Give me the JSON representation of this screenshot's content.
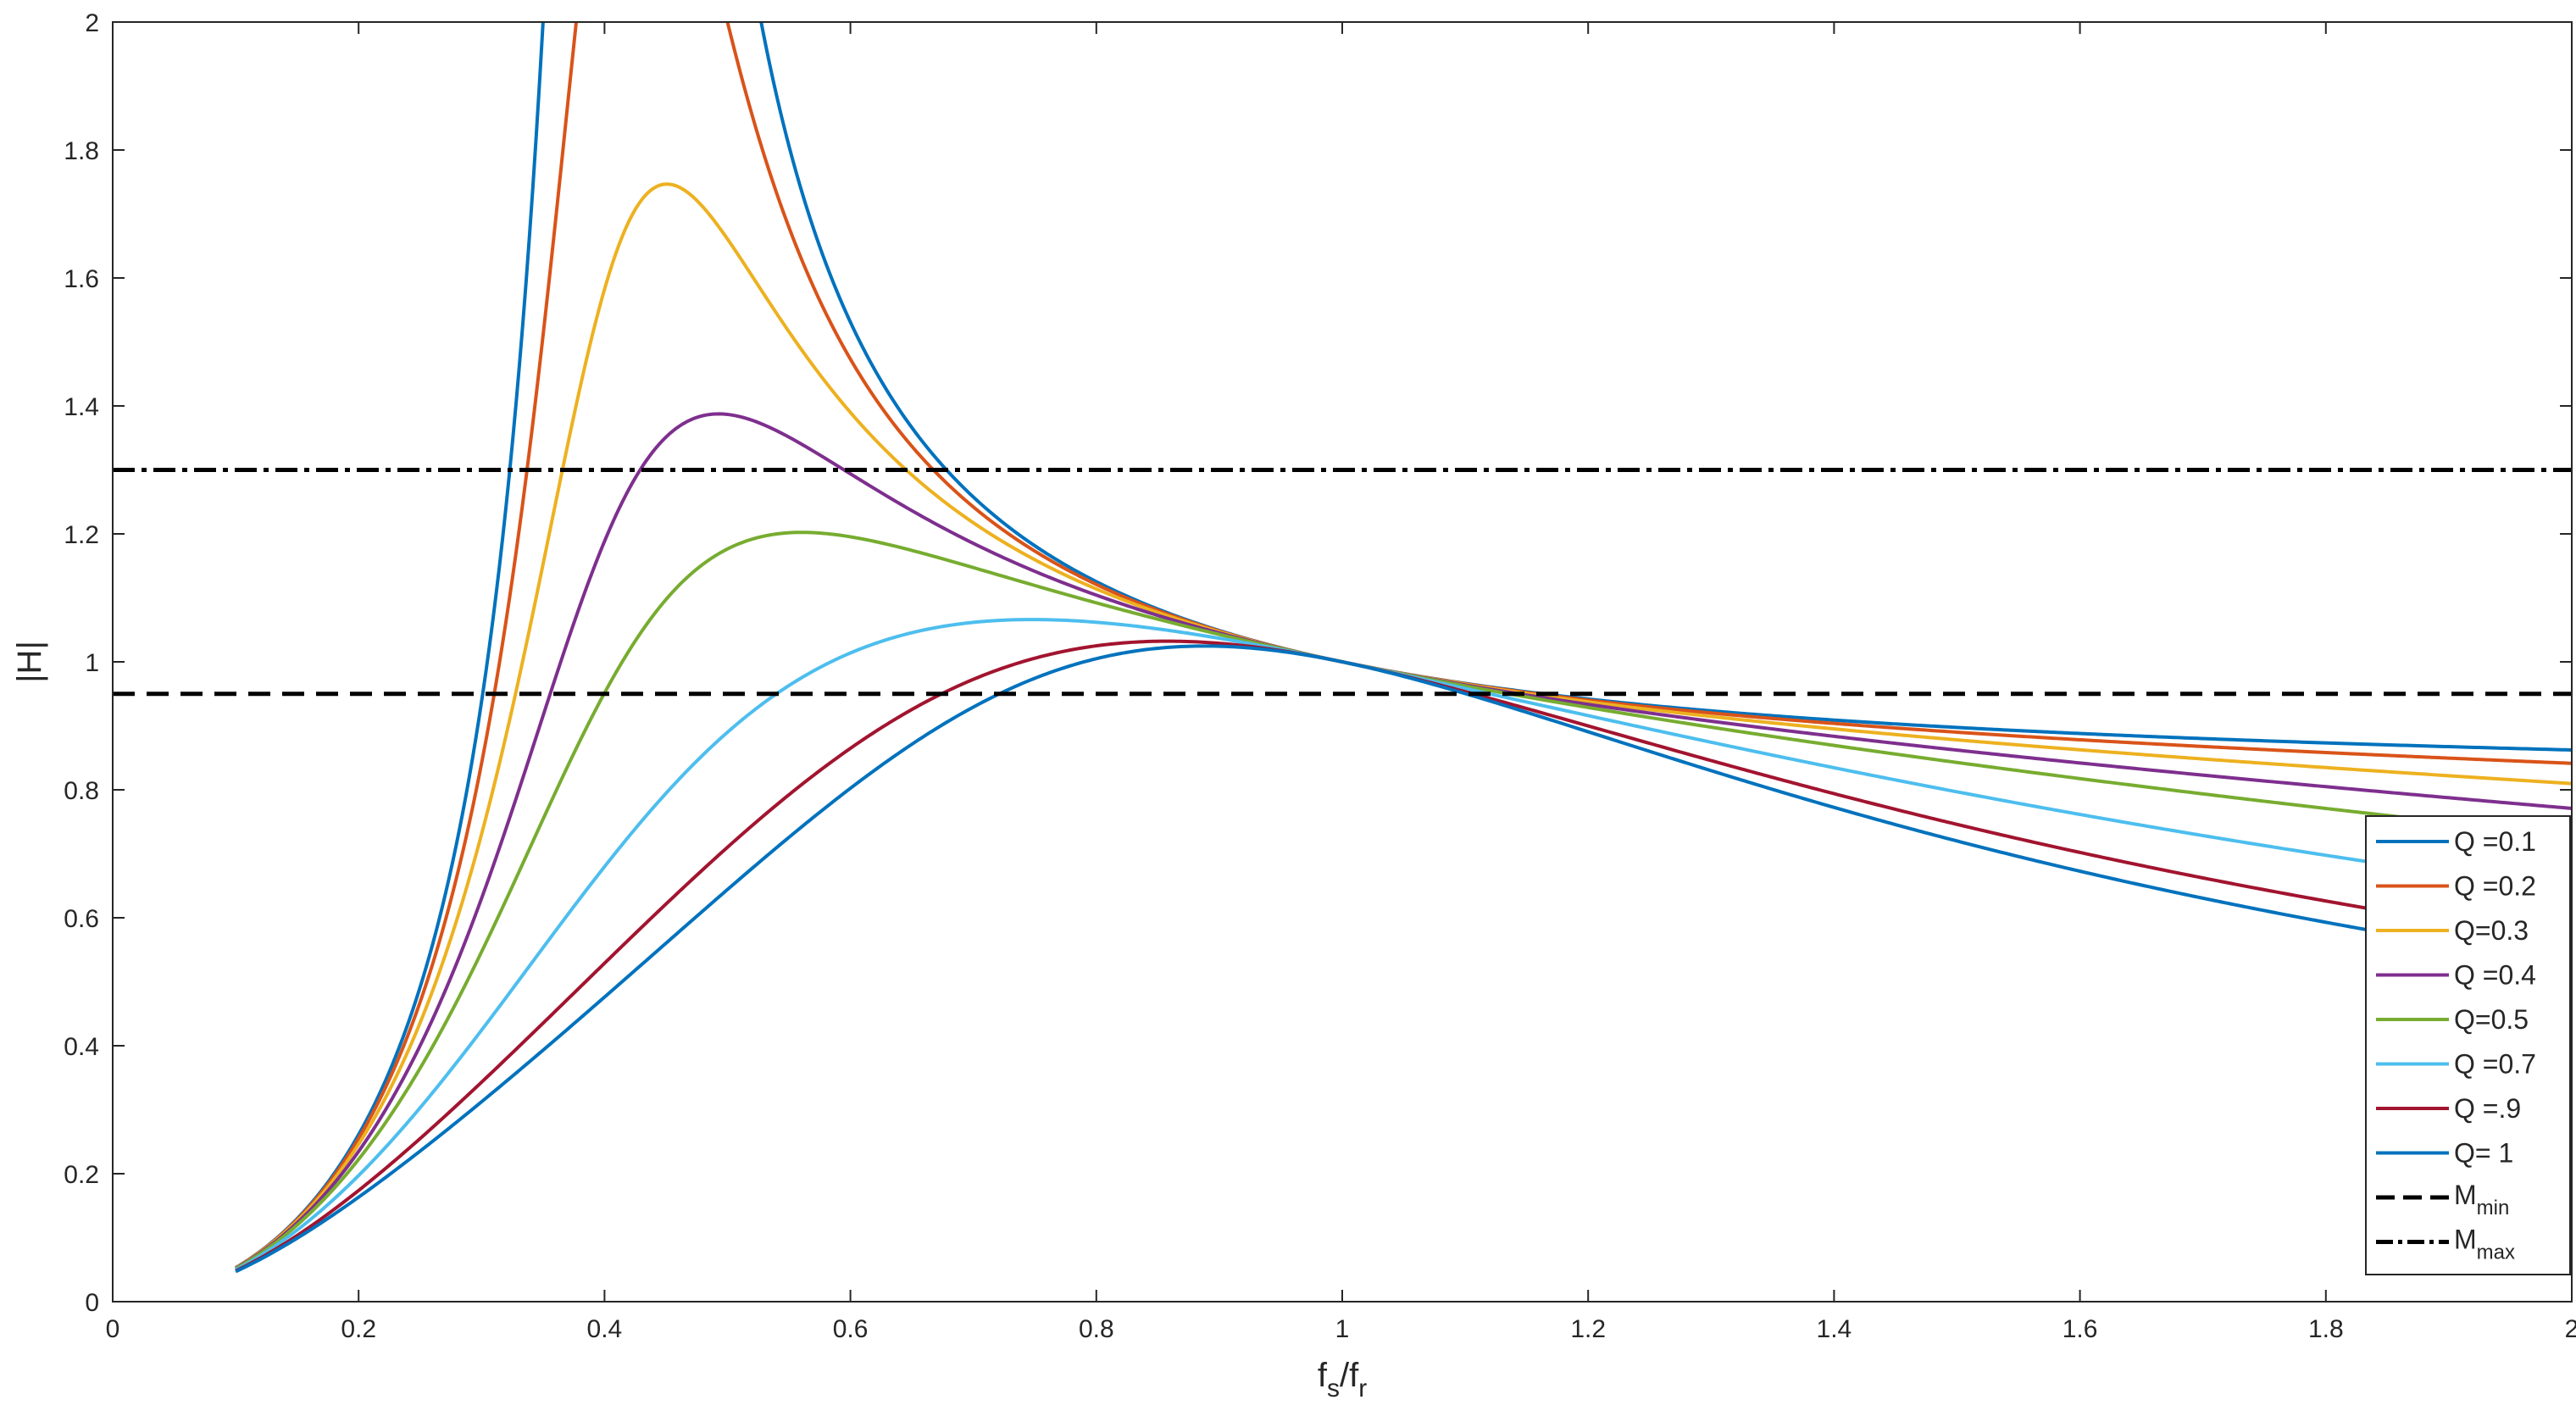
{
  "chart_data": {
    "type": "line",
    "xlabel": "f_s/f_r",
    "xlabel_parts": {
      "base1": "f",
      "sub1": "s",
      "slash": "/",
      "base2": "f",
      "sub2": "r"
    },
    "ylabel": "|H|",
    "xlim": [
      0,
      2
    ],
    "ylim": [
      0,
      2
    ],
    "xticks": [
      "0",
      "0.2",
      "0.4",
      "0.6",
      "0.8",
      "1",
      "1.2",
      "1.4",
      "1.6",
      "1.8",
      "2"
    ],
    "yticks": [
      "0",
      "0.2",
      "0.4",
      "0.6",
      "0.8",
      "1",
      "1.2",
      "1.4",
      "1.6",
      "1.8",
      "2"
    ],
    "grid": false,
    "legend_position": "bottom-right",
    "gain_model": {
      "Ln": 5,
      "x_range": [
        0.1,
        2
      ]
    },
    "series": [
      {
        "name": "Q =0.1",
        "Q": 0.1,
        "color": "#0072BD"
      },
      {
        "name": "Q =0.2",
        "Q": 0.2,
        "color": "#D95319"
      },
      {
        "name": "Q=0.3",
        "Q": 0.3,
        "color": "#EDB120"
      },
      {
        "name": "Q =0.4",
        "Q": 0.4,
        "color": "#7E2F8E"
      },
      {
        "name": "Q=0.5",
        "Q": 0.5,
        "color": "#77AC30"
      },
      {
        "name": "Q =0.7",
        "Q": 0.7,
        "color": "#4DBEEE"
      },
      {
        "name": "Q =.9",
        "Q": 0.9,
        "color": "#A2142F"
      },
      {
        "name": "Q= 1",
        "Q": 1.0,
        "color": "#0072BD"
      }
    ],
    "reference_lines": [
      {
        "name": "M_min",
        "base": "M",
        "sub": "min",
        "y": 0.95,
        "style": "dashed",
        "color": "#000000"
      },
      {
        "name": "M_max",
        "base": "M",
        "sub": "max",
        "y": 1.3,
        "style": "dashdot",
        "color": "#000000"
      }
    ]
  }
}
